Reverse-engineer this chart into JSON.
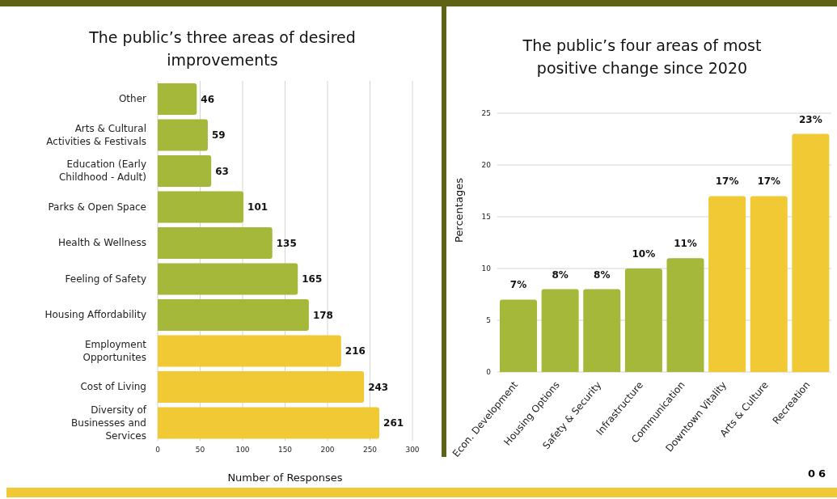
{
  "chart_data": [
    {
      "type": "bar",
      "title": "The public’s three areas of desired improvements",
      "orientation": "horizontal",
      "xlabel": "Number of Responses",
      "categories": [
        "Other",
        "Arts & Cultural Activities & Festivals",
        "Education (Early Childhood - Adult)",
        "Parks & Open Space",
        "Health & Wellness",
        "Feeling of Safety",
        "Housing Affordability",
        "Employment Opportunites",
        "Cost of Living",
        "Diversity of Businesses and Services"
      ],
      "values": [
        46,
        59,
        63,
        101,
        135,
        165,
        178,
        216,
        243,
        261
      ],
      "colors": [
        "#a5b83a",
        "#a5b83a",
        "#a5b83a",
        "#a5b83a",
        "#a5b83a",
        "#a5b83a",
        "#a5b83a",
        "#f1c935",
        "#f1c935",
        "#f1c935"
      ],
      "xlim": [
        0,
        300
      ],
      "xticks": [
        0,
        50,
        100,
        150,
        200,
        250,
        300
      ],
      "grid": "x",
      "data_labels": true
    },
    {
      "type": "bar",
      "title": "The public’s four areas of most positive change since 2020",
      "ylabel": "Percentages",
      "categories": [
        "Econ. Development",
        "Housing Options",
        "Safety & Security",
        "Infrastructure",
        "Communication",
        "Downtown Vitality",
        "Arts & Culture",
        "Recreation"
      ],
      "values": [
        7,
        8,
        8,
        10,
        11,
        17,
        17,
        23
      ],
      "colors": [
        "#a5b83a",
        "#a5b83a",
        "#a5b83a",
        "#a5b83a",
        "#a5b83a",
        "#f1c935",
        "#f1c935",
        "#f1c935"
      ],
      "value_labels": [
        "7%",
        "8%",
        "8%",
        "10%",
        "11%",
        "17%",
        "17%",
        "23%"
      ],
      "ylim": [
        0,
        25
      ],
      "yticks": [
        0,
        5,
        10,
        15,
        20,
        25
      ],
      "grid": "y",
      "annotations": [
        "06"
      ]
    }
  ]
}
